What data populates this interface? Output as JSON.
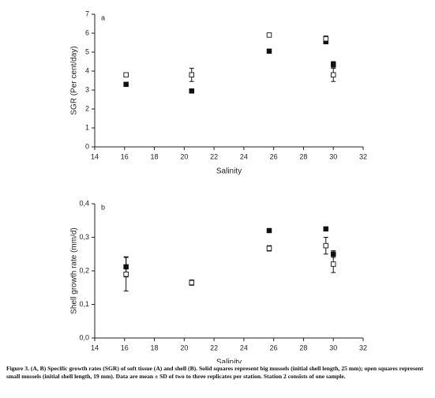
{
  "chart_data": [
    {
      "type": "scatter",
      "panel_label": "a",
      "x_label": "Salinity",
      "y_label": "SGR (Per cent/day)",
      "xlim": [
        14,
        32
      ],
      "xticks": [
        14,
        16,
        18,
        20,
        22,
        24,
        26,
        28,
        30,
        32
      ],
      "ylim": [
        0,
        7
      ],
      "yticks": [
        0,
        1,
        2,
        3,
        4,
        5,
        6,
        7
      ],
      "series": [
        {
          "marker": "filled",
          "color": "#111111",
          "x": [
            16.1,
            20.5,
            25.7,
            29.5,
            30
          ],
          "values": [
            3.3,
            2.95,
            5.05,
            5.55,
            4.35
          ],
          "errors": [
            null,
            null,
            null,
            0.1,
            0.15
          ]
        },
        {
          "marker": "open",
          "color": "#111111",
          "x": [
            16.1,
            20.5,
            25.7,
            29.5,
            30
          ],
          "values": [
            3.8,
            3.8,
            5.9,
            5.7,
            3.8
          ],
          "errors": [
            null,
            0.35,
            null,
            0.15,
            0.35
          ]
        }
      ]
    },
    {
      "type": "scatter",
      "panel_label": "b",
      "x_label": "Salinity",
      "y_label": "Shell growth rate (mm/d)",
      "xlim": [
        14,
        32
      ],
      "xticks": [
        14,
        16,
        18,
        20,
        22,
        24,
        26,
        28,
        30,
        32
      ],
      "ylim": [
        0,
        0.4
      ],
      "yticks": [
        {
          "value": 0,
          "label": "0,0"
        },
        {
          "value": 0.1,
          "label": "0,1"
        },
        {
          "value": 0.2,
          "label": "0,2"
        },
        {
          "value": 0.3,
          "label": "0,3"
        },
        {
          "value": 0.4,
          "label": "0,4"
        }
      ],
      "series": [
        {
          "marker": "filled",
          "color": "#111111",
          "x": [
            16.1,
            25.7,
            29.5,
            30
          ],
          "values": [
            0.212,
            0.32,
            0.325,
            0.25
          ],
          "errors": [
            0.03,
            null,
            0.005,
            0.01
          ]
        },
        {
          "marker": "open",
          "color": "#111111",
          "x": [
            16.1,
            20.5,
            25.7,
            29.5,
            30
          ],
          "values": [
            0.19,
            0.165,
            0.267,
            0.275,
            0.22
          ],
          "errors": [
            0.05,
            0.008,
            0.008,
            0.025,
            0.025
          ]
        }
      ]
    }
  ],
  "caption": "Figure 3.  (A, B) Specific growth rates (SGR) of soft tissue (A) and shell (B). Solid squares represent big mussels (initial shell length, 25 mm); open squares represent small mussels (initial shell length, 19 mm). Data are mean ± SD of two to three replicates per station. Station 2 consists of one sample."
}
